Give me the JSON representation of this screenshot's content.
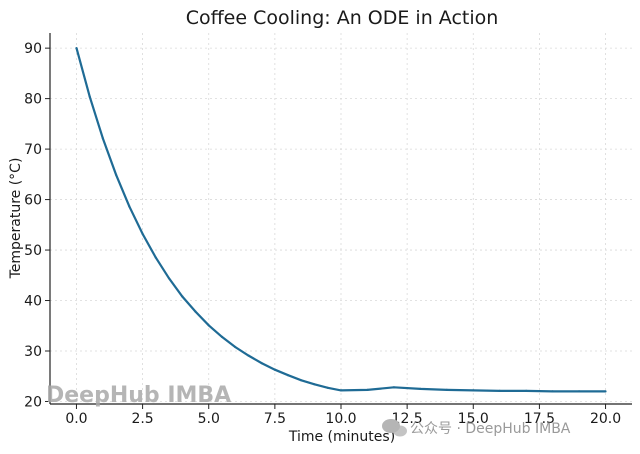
{
  "chart_data": {
    "type": "line",
    "title": "Coffee Cooling: An ODE in Action",
    "xlabel": "Time (minutes)",
    "ylabel": "Temperature (°C)",
    "xlim": [
      -1.0,
      21.0
    ],
    "ylim": [
      19.5,
      93.0
    ],
    "xticks": [
      "0.0",
      "2.5",
      "5.0",
      "7.5",
      "10.0",
      "12.5",
      "15.0",
      "17.5",
      "20.0"
    ],
    "yticks": [
      "20",
      "30",
      "40",
      "50",
      "60",
      "70",
      "80",
      "90"
    ],
    "grid": true,
    "series": [
      {
        "color": "#1f6b95",
        "x": [
          0,
          0.5,
          1,
          1.5,
          2,
          2.5,
          3,
          3.5,
          4,
          4.5,
          5,
          5.5,
          6,
          6.5,
          7,
          7.5,
          8,
          8.5,
          9,
          9.5,
          10,
          11,
          12,
          13,
          14,
          15,
          16,
          17,
          18,
          19,
          20
        ],
        "y": [
          90.0,
          80.4,
          72.1,
          64.9,
          58.6,
          53.2,
          48.5,
          44.4,
          40.8,
          37.8,
          35.1,
          32.8,
          30.8,
          29.1,
          27.6,
          26.3,
          25.2,
          24.2,
          23.4,
          22.7,
          22.2,
          22.3,
          22.8,
          22.5,
          22.3,
          22.2,
          22.1,
          22.1,
          22.0,
          22.0,
          22.0
        ]
      }
    ]
  },
  "watermark": {
    "brand": "DeepHub IMBA",
    "caption": "公众号 · DeepHub IMBA",
    "icon": "wechat-icon"
  }
}
